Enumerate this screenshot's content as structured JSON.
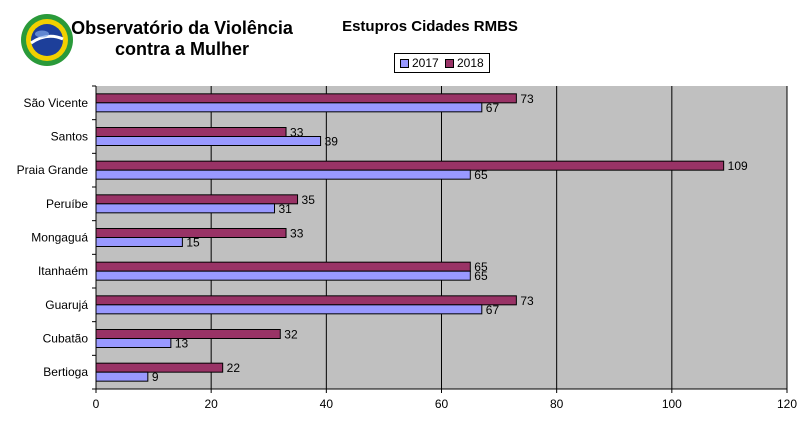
{
  "header": {
    "org_line1": "Observatório da Violência",
    "org_line2": "contra a Mulher",
    "logo_icon": "brazil-flag-globe-logo-icon"
  },
  "colors": {
    "series_2017": "#9999ff",
    "series_2018": "#993366",
    "plot_background": "#c0c0c0"
  },
  "chart_data": {
    "type": "bar",
    "orientation": "horizontal",
    "title": "Estupros Cidades RMBS",
    "xlabel": "",
    "ylabel": "",
    "categories": [
      "São Vicente",
      "Santos",
      "Praia Grande",
      "Peruíbe",
      "Mongaguá",
      "Itanhaém",
      "Guarujá",
      "Cubatão",
      "Bertioga"
    ],
    "series": [
      {
        "name": "2017",
        "values": [
          67,
          39,
          65,
          31,
          15,
          65,
          67,
          13,
          9
        ]
      },
      {
        "name": "2018",
        "values": [
          73,
          33,
          109,
          35,
          33,
          65,
          73,
          32,
          22
        ]
      }
    ],
    "xlim": [
      0,
      120
    ],
    "xticks": [
      "0",
      "20",
      "40",
      "60",
      "80",
      "100",
      "120"
    ],
    "grid": "vertical",
    "legend_position": "top"
  }
}
